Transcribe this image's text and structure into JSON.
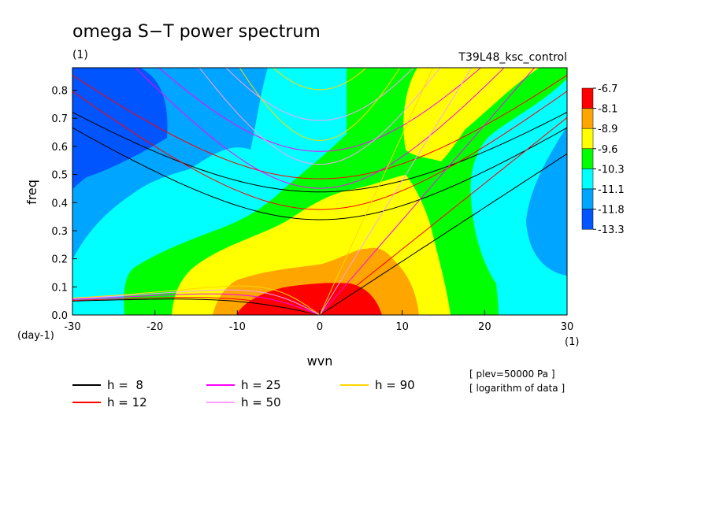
{
  "chart_data": {
    "type": "heatmap",
    "title": "omega S−T power spectrum",
    "units_label": "(1)",
    "run_label": "T39L48_ksc_control",
    "xlabel": "wvn",
    "ylabel": "freq",
    "x_unit_label": "(1)",
    "y_unit_label": "(day-1)",
    "xlim": [
      -30,
      30
    ],
    "ylim": [
      0,
      0.88
    ],
    "xticks": [
      "-30",
      "-20",
      "-10",
      "0",
      "10",
      "20",
      "30"
    ],
    "yticks": [
      "0.0",
      "0.1",
      "0.2",
      "0.3",
      "0.4",
      "0.5",
      "0.6",
      "0.7",
      "0.8"
    ],
    "colorbar": {
      "labels": [
        "-6.7",
        "-8.1",
        "-8.9",
        "-9.6",
        "-10.3",
        "-11.1",
        "-11.8",
        "-13.3"
      ],
      "colors": [
        "#ff0000",
        "#ffa500",
        "#ffff00",
        "#00ff00",
        "#00ffff",
        "#00a5ff",
        "#0055ff"
      ]
    },
    "dispersion_curves": [
      {
        "name": "h =  8",
        "h": 8,
        "color": "#000000"
      },
      {
        "name": "h = 12",
        "h": 12,
        "color": "#ff0000"
      },
      {
        "name": "h = 25",
        "h": 25,
        "color": "#ff00ff"
      },
      {
        "name": "h = 50",
        "h": 50,
        "color": "#ff9eff"
      },
      {
        "name": "h = 90",
        "h": 90,
        "color": "#ffd700"
      }
    ],
    "notes": [
      "[ plev=50000 Pa ]",
      "[ logarithm of data ]"
    ],
    "grid": false,
    "legend_position": "bottom"
  }
}
